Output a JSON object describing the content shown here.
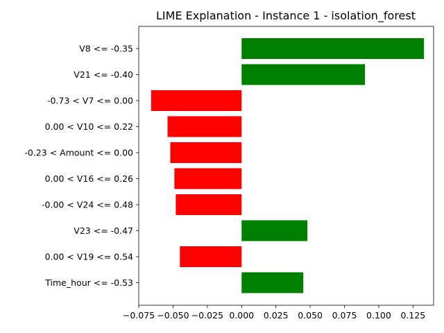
{
  "chart_data": {
    "type": "bar",
    "orientation": "horizontal",
    "title": "LIME Explanation - Instance 1 - isolation_forest",
    "xlabel": "",
    "ylabel": "",
    "categories": [
      "V8 <= -0.35",
      "V21 <= -0.40",
      "-0.73 < V7 <= 0.00",
      "0.00 < V10 <= 0.22",
      "-0.23 < Amount <= 0.00",
      "0.00 < V16 <= 0.26",
      "-0.00 < V24 <= 0.48",
      "V23 <= -0.47",
      "0.00 < V19 <= 0.54",
      "Time_hour <= -0.53"
    ],
    "values": [
      0.133,
      0.09,
      -0.066,
      -0.054,
      -0.052,
      -0.049,
      -0.048,
      0.048,
      -0.045,
      0.045
    ],
    "xlim": [
      -0.075,
      0.14
    ],
    "xticks": [
      -0.075,
      -0.05,
      -0.025,
      0.0,
      0.025,
      0.05,
      0.075,
      0.1,
      0.125
    ],
    "xtick_labels": [
      "−0.075",
      "−0.050",
      "−0.025",
      "0.000",
      "0.025",
      "0.050",
      "0.075",
      "0.100",
      "0.125"
    ],
    "grid": false,
    "colors": {
      "positive": "#008000",
      "negative": "#ff0000"
    }
  }
}
